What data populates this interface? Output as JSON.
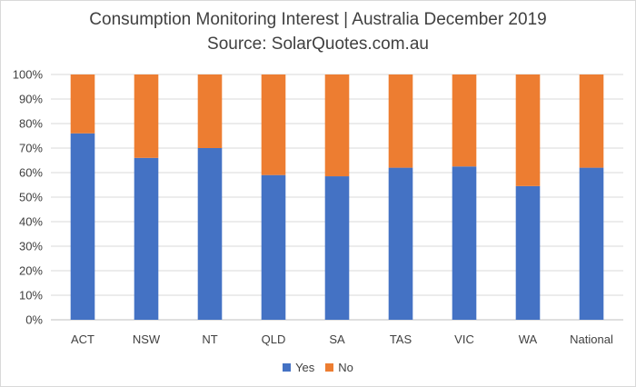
{
  "chart_data": {
    "type": "bar",
    "stacked": true,
    "title": "Consumption Monitoring Interest | Australia December 2019",
    "subtitle": "Source: SolarQuotes.com.au",
    "categories": [
      "ACT",
      "NSW",
      "NT",
      "QLD",
      "SA",
      "TAS",
      "VIC",
      "WA",
      "National"
    ],
    "series": [
      {
        "name": "Yes",
        "color": "#4472c4",
        "values": [
          76,
          66,
          70,
          59,
          58.5,
          62,
          62.5,
          54.5,
          62
        ]
      },
      {
        "name": "No",
        "color": "#ed7d31",
        "values": [
          24,
          34,
          30,
          41,
          41.5,
          38,
          37.5,
          45.5,
          38
        ]
      }
    ],
    "ylim": [
      0,
      100
    ],
    "yticks": [
      "0%",
      "10%",
      "20%",
      "30%",
      "40%",
      "50%",
      "60%",
      "70%",
      "80%",
      "90%",
      "100%"
    ],
    "grid": true,
    "legend": "bottom"
  }
}
